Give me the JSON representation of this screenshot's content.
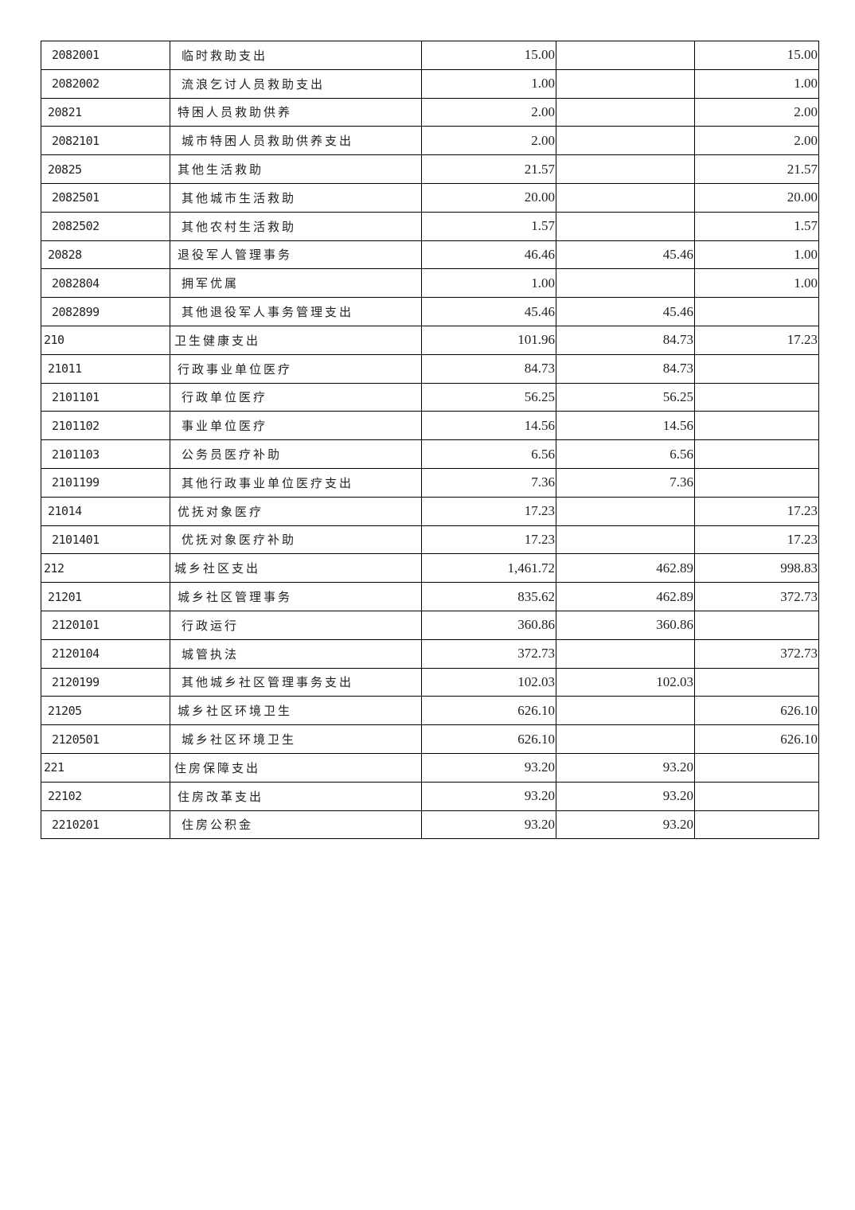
{
  "table": {
    "rows": [
      {
        "level": 3,
        "code": "2082001",
        "name": "临时救助支出",
        "total": "15.00",
        "basic": "",
        "project": "15.00"
      },
      {
        "level": 3,
        "code": "2082002",
        "name": "流浪乞讨人员救助支出",
        "total": "1.00",
        "basic": "",
        "project": "1.00"
      },
      {
        "level": 2,
        "code": "20821",
        "name": "特困人员救助供养",
        "total": "2.00",
        "basic": "",
        "project": "2.00"
      },
      {
        "level": 3,
        "code": "2082101",
        "name": "城市特困人员救助供养支出",
        "total": "2.00",
        "basic": "",
        "project": "2.00"
      },
      {
        "level": 2,
        "code": "20825",
        "name": "其他生活救助",
        "total": "21.57",
        "basic": "",
        "project": "21.57"
      },
      {
        "level": 3,
        "code": "2082501",
        "name": "其他城市生活救助",
        "total": "20.00",
        "basic": "",
        "project": "20.00"
      },
      {
        "level": 3,
        "code": "2082502",
        "name": "其他农村生活救助",
        "total": "1.57",
        "basic": "",
        "project": "1.57"
      },
      {
        "level": 2,
        "code": "20828",
        "name": "退役军人管理事务",
        "total": "46.46",
        "basic": "45.46",
        "project": "1.00"
      },
      {
        "level": 3,
        "code": "2082804",
        "name": "拥军优属",
        "total": "1.00",
        "basic": "",
        "project": "1.00"
      },
      {
        "level": 3,
        "code": "2082899",
        "name": "其他退役军人事务管理支出",
        "total": "45.46",
        "basic": "45.46",
        "project": ""
      },
      {
        "level": 1,
        "code": "210",
        "name": "卫生健康支出",
        "total": "101.96",
        "basic": "84.73",
        "project": "17.23"
      },
      {
        "level": 2,
        "code": "21011",
        "name": "行政事业单位医疗",
        "total": "84.73",
        "basic": "84.73",
        "project": ""
      },
      {
        "level": 3,
        "code": "2101101",
        "name": "行政单位医疗",
        "total": "56.25",
        "basic": "56.25",
        "project": ""
      },
      {
        "level": 3,
        "code": "2101102",
        "name": "事业单位医疗",
        "total": "14.56",
        "basic": "14.56",
        "project": ""
      },
      {
        "level": 3,
        "code": "2101103",
        "name": "公务员医疗补助",
        "total": "6.56",
        "basic": "6.56",
        "project": ""
      },
      {
        "level": 3,
        "code": "2101199",
        "name": "其他行政事业单位医疗支出",
        "total": "7.36",
        "basic": "7.36",
        "project": ""
      },
      {
        "level": 2,
        "code": "21014",
        "name": "优抚对象医疗",
        "total": "17.23",
        "basic": "",
        "project": "17.23"
      },
      {
        "level": 3,
        "code": "2101401",
        "name": "优抚对象医疗补助",
        "total": "17.23",
        "basic": "",
        "project": "17.23"
      },
      {
        "level": 1,
        "code": "212",
        "name": "城乡社区支出",
        "total": "1,461.72",
        "basic": "462.89",
        "project": "998.83"
      },
      {
        "level": 2,
        "code": "21201",
        "name": "城乡社区管理事务",
        "total": "835.62",
        "basic": "462.89",
        "project": "372.73"
      },
      {
        "level": 3,
        "code": "2120101",
        "name": "行政运行",
        "total": "360.86",
        "basic": "360.86",
        "project": ""
      },
      {
        "level": 3,
        "code": "2120104",
        "name": "城管执法",
        "total": "372.73",
        "basic": "",
        "project": "372.73"
      },
      {
        "level": 3,
        "code": "2120199",
        "name": "其他城乡社区管理事务支出",
        "total": "102.03",
        "basic": "102.03",
        "project": ""
      },
      {
        "level": 2,
        "code": "21205",
        "name": "城乡社区环境卫生",
        "total": "626.10",
        "basic": "",
        "project": "626.10"
      },
      {
        "level": 3,
        "code": "2120501",
        "name": "城乡社区环境卫生",
        "total": "626.10",
        "basic": "",
        "project": "626.10"
      },
      {
        "level": 1,
        "code": "221",
        "name": "住房保障支出",
        "total": "93.20",
        "basic": "93.20",
        "project": ""
      },
      {
        "level": 2,
        "code": "22102",
        "name": "住房改革支出",
        "total": "93.20",
        "basic": "93.20",
        "project": ""
      },
      {
        "level": 3,
        "code": "2210201",
        "name": "住房公积金",
        "total": "93.20",
        "basic": "93.20",
        "project": ""
      }
    ]
  }
}
